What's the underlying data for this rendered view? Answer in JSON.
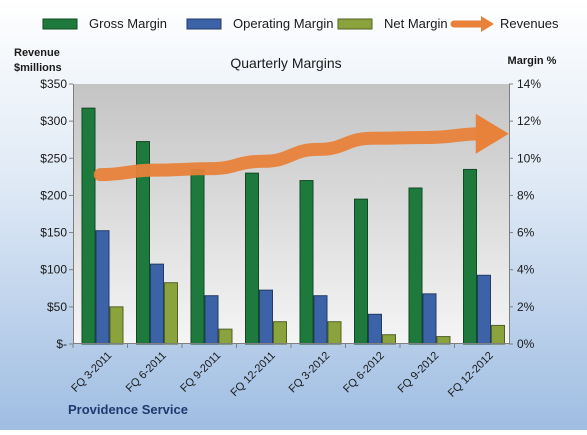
{
  "chart_data": {
    "type": "bar",
    "title": "Quarterly Margins",
    "footer": "Providence Service",
    "left_axis": {
      "label_line1": "Revenue",
      "label_line2": "$millions",
      "range": [
        0,
        350
      ],
      "ticks": [
        "$-",
        "$50",
        "$100",
        "$150",
        "$200",
        "$250",
        "$300",
        "$350"
      ]
    },
    "right_axis": {
      "label": "Margin %",
      "range": [
        0,
        14
      ],
      "ticks": [
        "0%",
        "2%",
        "4%",
        "6%",
        "8%",
        "10%",
        "12%",
        "14%"
      ]
    },
    "categories": [
      "FQ 3-2011",
      "FQ 6-2011",
      "FQ 9-2011",
      "FQ 12-2011",
      "FQ 3-2012",
      "FQ 6-2012",
      "FQ 9-2012",
      "FQ 12-2012"
    ],
    "series": [
      {
        "name": "Gross Margin",
        "axis": "right",
        "kind": "bar",
        "color": "#1e7a3c",
        "values": [
          12.7,
          10.9,
          9.4,
          9.2,
          8.8,
          7.8,
          8.4,
          9.4
        ]
      },
      {
        "name": "Operating Margin",
        "axis": "right",
        "kind": "bar",
        "color": "#3c62a8",
        "values": [
          6.1,
          4.3,
          2.6,
          2.9,
          2.6,
          1.6,
          2.7,
          3.7
        ]
      },
      {
        "name": "Net Margin",
        "axis": "right",
        "kind": "bar",
        "color": "#8aa33c",
        "values": [
          2.0,
          3.3,
          0.8,
          1.2,
          1.2,
          0.5,
          0.4,
          1.0
        ]
      },
      {
        "name": "Revenues",
        "axis": "left",
        "kind": "line",
        "color": "#e8823a",
        "values": [
          228,
          234,
          236,
          246,
          262,
          277,
          278,
          283
        ]
      }
    ],
    "grid": false,
    "legend_position": "top"
  }
}
